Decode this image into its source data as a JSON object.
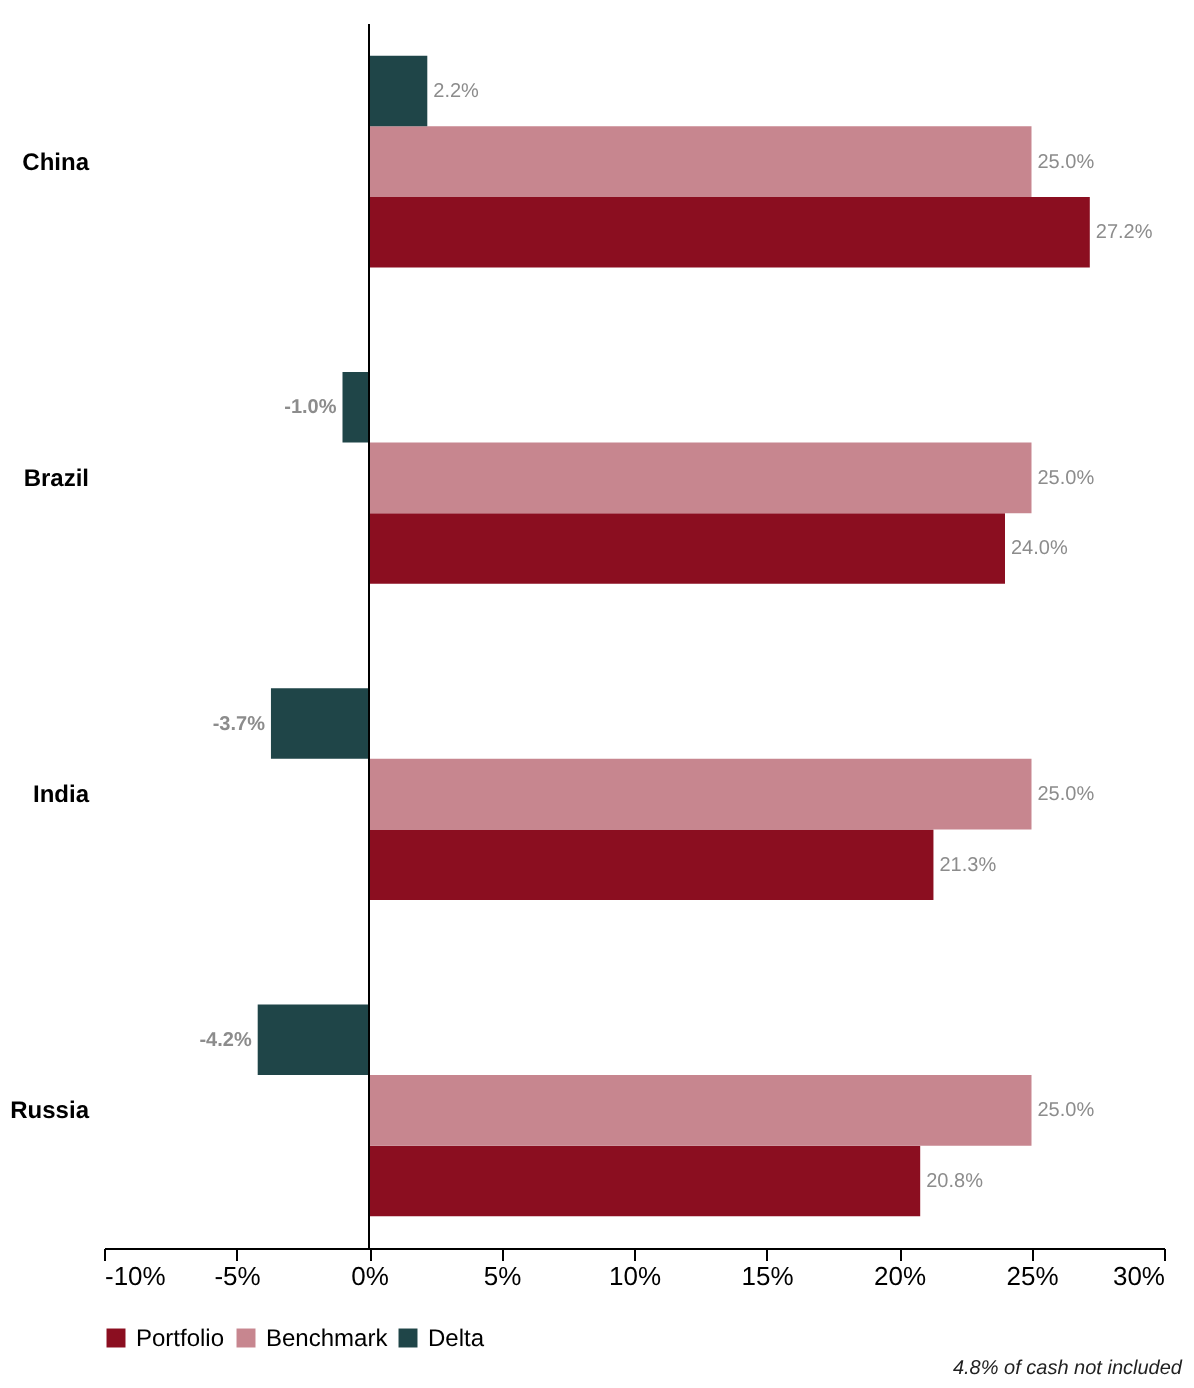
{
  "chart_data": {
    "type": "bar",
    "orientation": "horizontal",
    "categories": [
      "China",
      "Brazil",
      "India",
      "Russia"
    ],
    "series": [
      {
        "name": "Portfolio",
        "color": "#8b0e20",
        "values": [
          27.2,
          24.0,
          21.3,
          20.8
        ],
        "value_labels": [
          "27.2%",
          "24.0%",
          "21.3%",
          "20.8%"
        ]
      },
      {
        "name": "Benchmark",
        "color": "#c7868f",
        "values": [
          25.0,
          25.0,
          25.0,
          25.0
        ],
        "value_labels": [
          "25.0%",
          "25.0%",
          "25.0%",
          "25.0%"
        ]
      },
      {
        "name": "Delta",
        "color": "#1f4548",
        "values": [
          2.2,
          -1.0,
          -3.7,
          -4.2
        ],
        "value_labels": [
          "2.2%",
          "-1.0%",
          "-3.7%",
          "-4.2%"
        ]
      }
    ],
    "xlim": [
      -10,
      30
    ],
    "xticks": [
      {
        "value": -10,
        "label": "-10%"
      },
      {
        "value": -5,
        "label": "-5%"
      },
      {
        "value": 0,
        "label": "0%"
      },
      {
        "value": 5,
        "label": "5%"
      },
      {
        "value": 10,
        "label": "10%"
      },
      {
        "value": 15,
        "label": "15%"
      },
      {
        "value": 20,
        "label": "20%"
      },
      {
        "value": 25,
        "label": "25%"
      },
      {
        "value": 30,
        "label": "30%"
      }
    ],
    "ref_lines": [
      {
        "axis": "x",
        "value": 0
      }
    ],
    "legend": "bottom",
    "annotations": [
      "4.8%  of cash not included"
    ]
  }
}
